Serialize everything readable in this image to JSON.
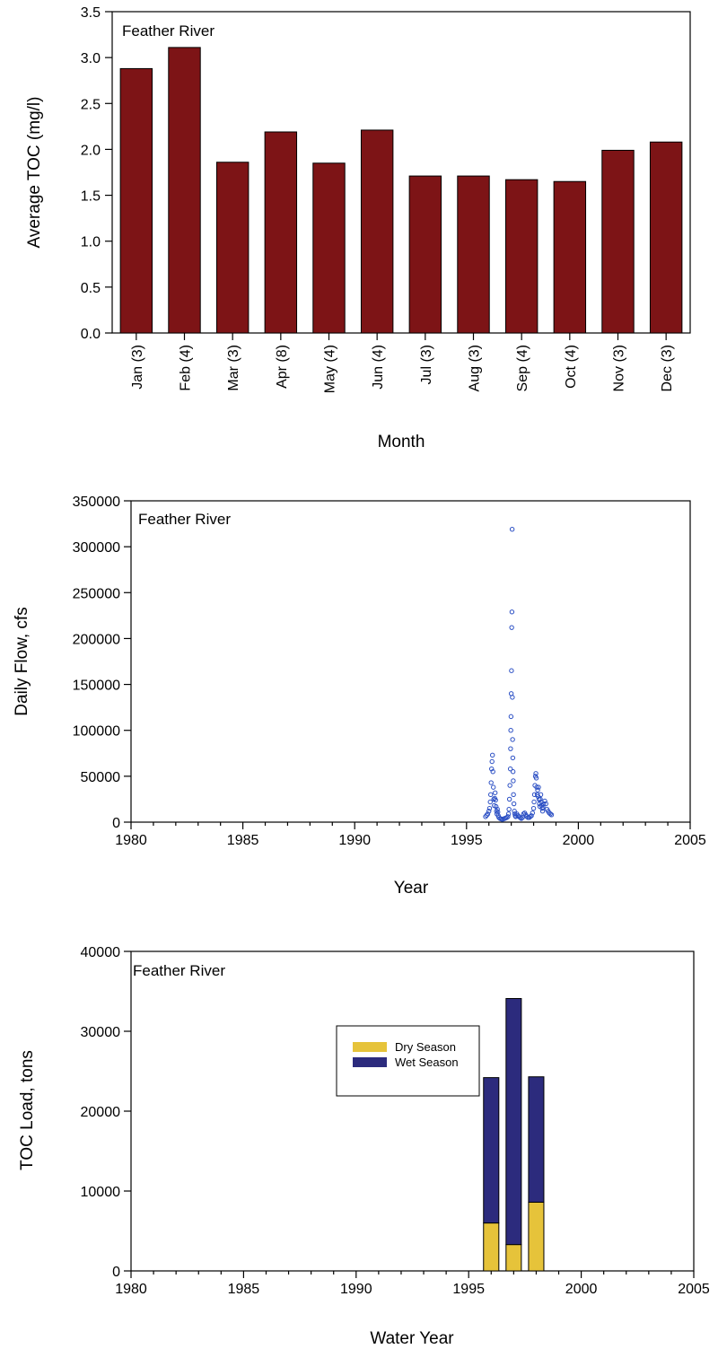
{
  "chart_data": [
    {
      "type": "bar",
      "annotation": "Feather River",
      "xlabel": "Month",
      "ylabel": "Average TOC (mg/l)",
      "ylim": [
        0,
        3.5
      ],
      "y_ticks": [
        "0.0",
        "0.5",
        "1.0",
        "1.5",
        "2.0",
        "2.5",
        "3.0",
        "3.5"
      ],
      "categories": [
        "Jan (3)",
        "Feb (4)",
        "Mar (3)",
        "Apr (8)",
        "May (4)",
        "Jun (4)",
        "Jul (3)",
        "Aug (3)",
        "Sep (4)",
        "Oct (4)",
        "Nov (3)",
        "Dec (3)"
      ],
      "values": [
        2.88,
        3.11,
        1.86,
        2.19,
        1.85,
        2.21,
        1.71,
        1.71,
        1.67,
        1.65,
        1.99,
        2.08
      ],
      "bar_color": "#7d1416",
      "grid": false
    },
    {
      "type": "scatter",
      "annotation": "Feather River",
      "xlabel": "Year",
      "ylabel": "Daily Flow, cfs",
      "xlim": [
        1980,
        2005
      ],
      "ylim": [
        0,
        350000
      ],
      "x_ticks": [
        "1980",
        "1985",
        "1990",
        "1995",
        "2000",
        "2005"
      ],
      "y_ticks": [
        "0",
        "50000",
        "100000",
        "150000",
        "200000",
        "250000",
        "300000",
        "350000"
      ],
      "marker_color": "#2b4fc4",
      "grid": false,
      "series": [
        {
          "x": [
            1995.85,
            1995.9,
            1995.95,
            1996.0,
            1996.03,
            1996.06,
            1996.08,
            1996.1,
            1996.12,
            1996.14,
            1996.16,
            1996.18,
            1996.2,
            1996.22,
            1996.24,
            1996.26,
            1996.28,
            1996.3,
            1996.32,
            1996.34,
            1996.36,
            1996.38,
            1996.4,
            1996.42,
            1996.45,
            1996.5,
            1996.55,
            1996.6,
            1996.65,
            1996.7,
            1996.75,
            1996.8,
            1996.85,
            1996.88,
            1996.9,
            1996.92,
            1996.94,
            1996.96,
            1996.97,
            1996.98,
            1996.99,
            1997.0,
            1997.01,
            1997.02,
            1997.03,
            1997.04,
            1997.05,
            1997.06,
            1997.07,
            1997.08,
            1997.09,
            1997.1,
            1997.12,
            1997.14,
            1997.16,
            1997.18,
            1997.2,
            1997.25,
            1997.3,
            1997.35,
            1997.4,
            1997.45,
            1997.5,
            1997.55,
            1997.6,
            1997.65,
            1997.7,
            1997.75,
            1997.8,
            1997.85,
            1997.9,
            1997.95,
            1998.0,
            1998.02,
            1998.04,
            1998.06,
            1998.08,
            1998.1,
            1998.12,
            1998.14,
            1998.16,
            1998.18,
            1998.2,
            1998.22,
            1998.24,
            1998.26,
            1998.28,
            1998.3,
            1998.32,
            1998.34,
            1998.36,
            1998.38,
            1998.4,
            1998.42,
            1998.45,
            1998.5,
            1998.55,
            1998.6,
            1998.65,
            1998.7,
            1998.75,
            1998.8
          ],
          "y": [
            6000,
            7500,
            9000,
            12000,
            15000,
            22000,
            30000,
            43000,
            58000,
            66000,
            73000,
            55000,
            38000,
            25000,
            18000,
            26000,
            32000,
            24000,
            17000,
            12000,
            9000,
            14000,
            11000,
            7000,
            5000,
            4000,
            3500,
            3000,
            3500,
            4000,
            4500,
            5000,
            6000,
            9000,
            14000,
            25000,
            40000,
            58000,
            80000,
            100000,
            115000,
            140000,
            165000,
            212000,
            229000,
            319000,
            136000,
            90000,
            70000,
            55000,
            45000,
            30000,
            20000,
            12000,
            9000,
            7000,
            6000,
            9000,
            7000,
            6000,
            5000,
            4000,
            5000,
            9000,
            10000,
            8000,
            6000,
            5000,
            5000,
            6000,
            7000,
            10000,
            15000,
            22000,
            30000,
            40000,
            50000,
            53000,
            48000,
            38000,
            30000,
            35000,
            28000,
            38000,
            25000,
            20000,
            17000,
            25000,
            30000,
            22000,
            18000,
            15000,
            12000,
            16000,
            20000,
            23000,
            20000,
            14000,
            12000,
            10000,
            9000,
            8000
          ]
        }
      ]
    },
    {
      "type": "bar",
      "stacked": true,
      "annotation": "Feather River",
      "xlabel": "Water Year",
      "ylabel": "TOC Load, tons",
      "xlim": [
        1980,
        2005
      ],
      "ylim": [
        0,
        40000
      ],
      "x_ticks": [
        "1980",
        "1985",
        "1990",
        "1995",
        "2000",
        "2005"
      ],
      "y_ticks": [
        "0",
        "10000",
        "20000",
        "30000",
        "40000"
      ],
      "legend_position": "upper-center",
      "grid": false,
      "x": [
        1996,
        1997,
        1998
      ],
      "series": [
        {
          "name": "Dry Season",
          "color": "#e6c33a",
          "values": [
            6000,
            3300,
            8600
          ]
        },
        {
          "name": "Wet Season",
          "color": "#2c2b7d",
          "values": [
            18200,
            30800,
            15700
          ]
        }
      ]
    }
  ]
}
